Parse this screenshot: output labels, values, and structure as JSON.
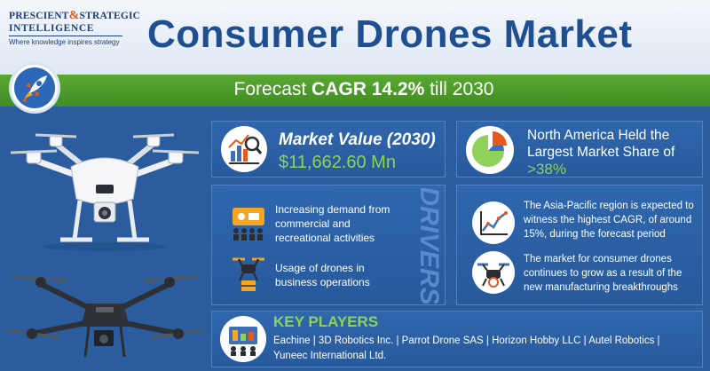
{
  "logo": {
    "line1_a": "PRESCIENT",
    "line1_amp": "&",
    "line1_b": "STRATEGIC",
    "line2": "INTELLIGENCE",
    "tagline": "Where knowledge inspires strategy"
  },
  "title": "Consumer Drones Market",
  "forecast": {
    "prefix": "Forecast ",
    "highlight": "CAGR 14.2%",
    "suffix": " till 2030"
  },
  "market_value": {
    "label": "Market Value (2030)",
    "value": "$11,662.60 Mn"
  },
  "north_america": {
    "text": "North America Held the Largest Market Share of ",
    "value": ">38%"
  },
  "drivers_label": "DRIVERS",
  "drivers": [
    {
      "icon": "demand-icon",
      "text": "Increasing demand from commercial and recreational activities"
    },
    {
      "icon": "drone-business-icon",
      "text": "Usage of drones in business operations"
    }
  ],
  "insights": [
    {
      "icon": "growth-chart-icon",
      "text": "The Asia-Pacific region is expected to witness the highest CAGR, of around 15%, during the forecast period"
    },
    {
      "icon": "drone-manufacturing-icon",
      "text": "The market for consumer drones continues to grow as a result of the new manufacturing breakthroughs"
    }
  ],
  "key_players": {
    "title": "KEY PLAYERS",
    "list": "Eachine | 3D Robotics Inc. | Parrot Drone SAS | Horizon Hobby LLC | Autel Robotics | Yuneec International Ltd."
  },
  "colors": {
    "title_blue": "#1f4f91",
    "accent_green": "#8fd15b",
    "band_green": "#4a9a2a",
    "panel_blue": "#2b5d9e"
  }
}
